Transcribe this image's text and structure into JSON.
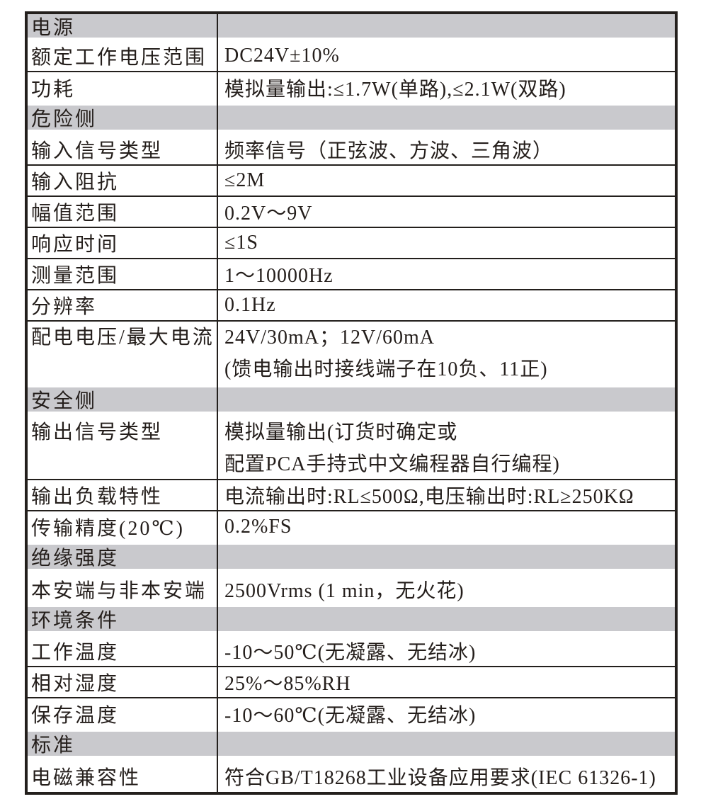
{
  "document": {
    "kind": "product-specification-table",
    "language": "zh-CN"
  },
  "colors": {
    "grid": "#231f1c",
    "section_band": "#c9c9cd",
    "text": "#241e1b",
    "background": "#ffffff"
  },
  "rows": [
    {
      "type": "section",
      "label": "电源"
    },
    {
      "type": "row",
      "label": "额定工作电压范围",
      "value": "DC24V±10%"
    },
    {
      "type": "row",
      "label": "功耗",
      "value": "模拟量输出:≤1.7W(单路),≤2.1W(双路)"
    },
    {
      "type": "section",
      "label": "危险侧"
    },
    {
      "type": "row",
      "label": "输入信号类型",
      "value": "频率信号（正弦波、方波、三角波）"
    },
    {
      "type": "row",
      "label": "输入阻抗",
      "value": "≤2M"
    },
    {
      "type": "row",
      "label": "幅值范围",
      "value": "0.2V～9V"
    },
    {
      "type": "row",
      "label": "响应时间",
      "value": "≤1S"
    },
    {
      "type": "row",
      "label": "测量范围",
      "value": "1～10000Hz"
    },
    {
      "type": "row",
      "label": "分辨率",
      "value": "0.1Hz"
    },
    {
      "type": "row",
      "label": "配电电压/最大电流",
      "value": "24V/30mA；12V/60mA",
      "value2": "(馈电输出时接线端子在10负、11正)"
    },
    {
      "type": "section",
      "label": "安全侧"
    },
    {
      "type": "row",
      "label": "输出信号类型",
      "value": "模拟量输出(订货时确定或",
      "value2": "配置PCA手持式中文编程器自行编程)"
    },
    {
      "type": "row",
      "label": "输出负载特性",
      "value": "电流输出时:RL≤500Ω,电压输出时:RL≥250KΩ"
    },
    {
      "type": "row",
      "label": "传输精度(20℃)",
      "value": "0.2%FS"
    },
    {
      "type": "section",
      "label": "绝缘强度"
    },
    {
      "type": "row",
      "label": "本安端与非本安端",
      "value": "2500Vrms (1 min，无火花)"
    },
    {
      "type": "section",
      "label": "环境条件"
    },
    {
      "type": "row",
      "label": "工作温度",
      "value": "-10～50℃(无凝露、无结冰)"
    },
    {
      "type": "row",
      "label": "相对湿度",
      "value": "25%～85%RH"
    },
    {
      "type": "row",
      "label": "保存温度",
      "value": "-10～60℃(无凝露、无结冰)"
    },
    {
      "type": "section",
      "label": "标准"
    },
    {
      "type": "row",
      "label": "电磁兼容性",
      "value": "符合GB/T18268工业设备应用要求(IEC 61326-1)"
    }
  ]
}
